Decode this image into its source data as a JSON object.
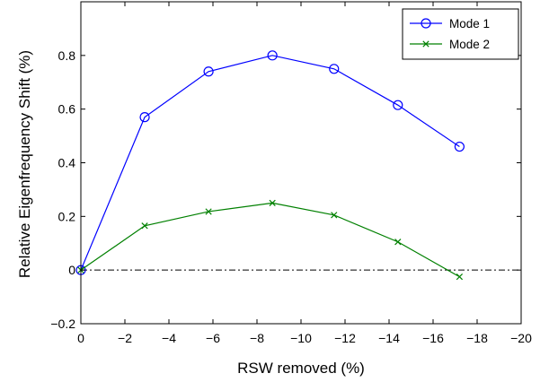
{
  "chart_data": {
    "type": "line",
    "title": "",
    "xlabel": "RSW removed (%)",
    "ylabel": "Relative Eigenfrequency Shift (%)",
    "xlim": [
      0,
      -20
    ],
    "ylim": [
      -0.2,
      1.0
    ],
    "x_axis_reversed": true,
    "xticks": [
      0,
      -2,
      -4,
      -6,
      -8,
      -10,
      -12,
      -14,
      -16,
      -18,
      -20
    ],
    "xtick_labels": [
      "0",
      "−2",
      "−4",
      "−6",
      "−8",
      "−10",
      "−12",
      "−14",
      "−16",
      "−18",
      "−20"
    ],
    "yticks": [
      -0.2,
      0,
      0.2,
      0.4,
      0.6,
      0.8
    ],
    "ytick_labels": [
      "−0.2",
      "0",
      "0.2",
      "0.4",
      "0.6",
      "0.8"
    ],
    "grid": false,
    "legend_position": "top-right",
    "reference_line": {
      "y": 0,
      "style": "dash-dot",
      "color": "#000000"
    },
    "series": [
      {
        "name": "Mode 1",
        "color": "#0000ff",
        "marker": "circle",
        "x": [
          0,
          -2.9,
          -5.8,
          -8.7,
          -11.5,
          -14.4,
          -17.2
        ],
        "y": [
          0.0,
          0.57,
          0.74,
          0.8,
          0.75,
          0.615,
          0.46
        ]
      },
      {
        "name": "Mode 2",
        "color": "#008000",
        "marker": "x",
        "x": [
          0,
          -2.9,
          -5.8,
          -8.7,
          -11.5,
          -14.4,
          -17.2
        ],
        "y": [
          0.0,
          0.165,
          0.218,
          0.25,
          0.205,
          0.105,
          -0.025
        ]
      }
    ]
  }
}
